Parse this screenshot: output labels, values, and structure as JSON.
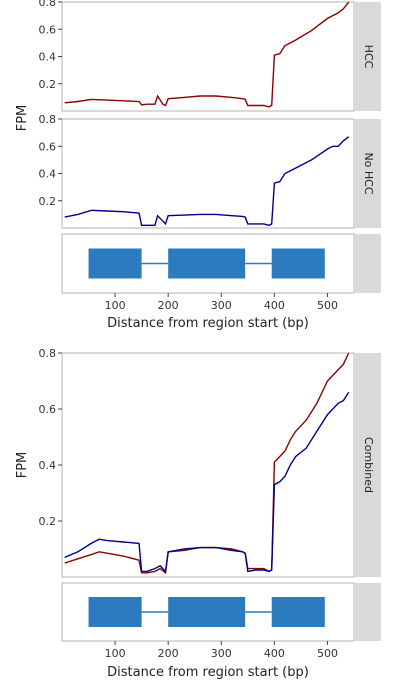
{
  "chart_data": [
    {
      "type": "line",
      "panel": "top-faceted",
      "ylabel": "FPM",
      "ylim": [
        0,
        0.8
      ],
      "yticks": [
        0.2,
        0.4,
        0.6,
        0.8
      ],
      "xlim": [
        0,
        550
      ],
      "facets": [
        {
          "strip": "HCC",
          "series": [
            {
              "color": "#8b0000",
              "x": [
                5,
                30,
                55,
                85,
                115,
                145,
                150,
                160,
                175,
                180,
                190,
                195,
                200,
                230,
                260,
                290,
                320,
                340,
                345,
                350,
                365,
                380,
                390,
                395,
                400,
                410,
                420,
                440,
                470,
                500,
                510,
                520,
                530,
                540
              ],
              "y": [
                0.06,
                0.07,
                0.085,
                0.08,
                0.075,
                0.07,
                0.045,
                0.05,
                0.05,
                0.11,
                0.05,
                0.04,
                0.09,
                0.1,
                0.11,
                0.11,
                0.1,
                0.09,
                0.085,
                0.04,
                0.04,
                0.04,
                0.03,
                0.04,
                0.41,
                0.42,
                0.48,
                0.52,
                0.59,
                0.68,
                0.7,
                0.72,
                0.75,
                0.8
              ]
            }
          ]
        },
        {
          "strip": "No HCC",
          "series": [
            {
              "color": "#00008b",
              "x": [
                5,
                30,
                55,
                85,
                115,
                145,
                150,
                160,
                175,
                180,
                190,
                195,
                200,
                230,
                260,
                290,
                320,
                340,
                345,
                350,
                365,
                380,
                390,
                395,
                400,
                410,
                420,
                440,
                470,
                500,
                510,
                520,
                530,
                540
              ],
              "y": [
                0.08,
                0.1,
                0.13,
                0.125,
                0.12,
                0.11,
                0.02,
                0.02,
                0.02,
                0.09,
                0.05,
                0.03,
                0.09,
                0.095,
                0.1,
                0.1,
                0.09,
                0.085,
                0.08,
                0.03,
                0.03,
                0.03,
                0.02,
                0.03,
                0.33,
                0.34,
                0.4,
                0.44,
                0.5,
                0.58,
                0.6,
                0.6,
                0.64,
                0.67
              ]
            }
          ]
        }
      ],
      "gene_track": {
        "exons": [
          [
            50,
            150
          ],
          [
            200,
            345
          ],
          [
            395,
            495
          ]
        ],
        "color": "#2c7bbf"
      },
      "xticks": [
        100,
        200,
        300,
        400,
        500
      ],
      "xlabel": "Distance from region start (bp)"
    },
    {
      "type": "line",
      "panel": "bottom-combined",
      "ylabel": "FPM",
      "ylim": [
        0,
        0.8
      ],
      "yticks": [
        0.2,
        0.4,
        0.6,
        0.8
      ],
      "xlim": [
        0,
        550
      ],
      "facets": [
        {
          "strip": "Combined",
          "series": [
            {
              "color": "#8b0000",
              "x": [
                5,
                30,
                55,
                70,
                85,
                115,
                145,
                150,
                160,
                175,
                185,
                195,
                200,
                230,
                260,
                290,
                320,
                340,
                345,
                350,
                365,
                380,
                390,
                395,
                400,
                410,
                420,
                430,
                440,
                460,
                480,
                500,
                510,
                520,
                530,
                540
              ],
              "y": [
                0.05,
                0.065,
                0.08,
                0.09,
                0.085,
                0.075,
                0.06,
                0.015,
                0.015,
                0.02,
                0.03,
                0.015,
                0.09,
                0.095,
                0.105,
                0.105,
                0.1,
                0.09,
                0.085,
                0.03,
                0.03,
                0.03,
                0.02,
                0.025,
                0.41,
                0.43,
                0.45,
                0.49,
                0.52,
                0.56,
                0.62,
                0.7,
                0.72,
                0.74,
                0.76,
                0.8
              ]
            },
            {
              "color": "#00008b",
              "x": [
                5,
                30,
                55,
                70,
                85,
                115,
                145,
                150,
                160,
                175,
                185,
                195,
                200,
                230,
                260,
                290,
                320,
                340,
                345,
                350,
                365,
                380,
                390,
                395,
                400,
                410,
                420,
                430,
                440,
                460,
                480,
                500,
                510,
                520,
                530,
                540
              ],
              "y": [
                0.07,
                0.09,
                0.12,
                0.135,
                0.13,
                0.125,
                0.12,
                0.02,
                0.02,
                0.03,
                0.04,
                0.02,
                0.09,
                0.1,
                0.105,
                0.105,
                0.095,
                0.09,
                0.085,
                0.02,
                0.025,
                0.025,
                0.02,
                0.025,
                0.33,
                0.34,
                0.36,
                0.4,
                0.43,
                0.46,
                0.52,
                0.58,
                0.6,
                0.62,
                0.63,
                0.66
              ]
            }
          ]
        }
      ],
      "gene_track": {
        "exons": [
          [
            50,
            150
          ],
          [
            200,
            345
          ],
          [
            395,
            495
          ]
        ],
        "color": "#2c7bbf"
      },
      "xticks": [
        100,
        200,
        300,
        400,
        500
      ],
      "xlabel": "Distance from region start (bp)"
    }
  ]
}
